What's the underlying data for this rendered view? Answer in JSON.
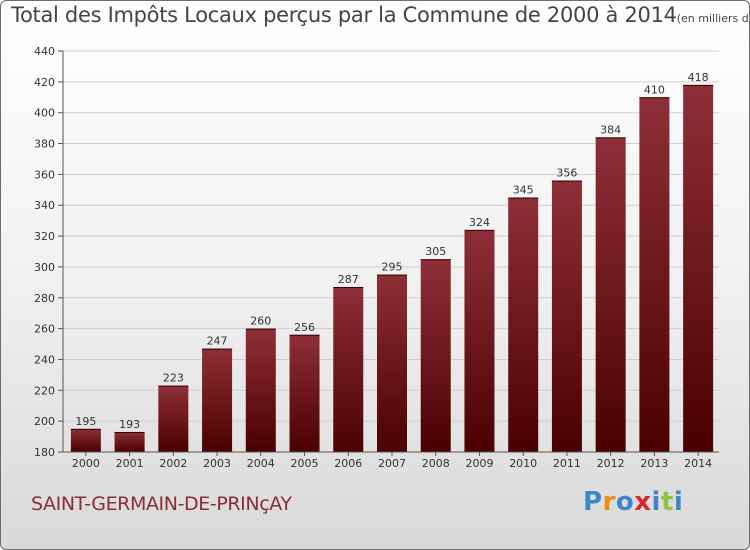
{
  "chart_data": {
    "type": "bar",
    "title": "Total des Impôts Locaux perçus par la Commune de 2000 à 2014",
    "title_unit": "(en milliers d'€)",
    "categories": [
      "2000",
      "2001",
      "2002",
      "2003",
      "2004",
      "2005",
      "2006",
      "2007",
      "2008",
      "2009",
      "2010",
      "2011",
      "2012",
      "2013",
      "2014"
    ],
    "values": [
      195,
      193,
      223,
      247,
      260,
      256,
      287,
      295,
      305,
      324,
      345,
      356,
      384,
      410,
      418
    ],
    "data_labels": [
      "195",
      "193",
      "223",
      "247",
      "260",
      "256",
      "287",
      "295",
      "305",
      "324",
      "345",
      "356",
      "384",
      "410",
      "418"
    ],
    "yticks": [
      "180",
      "200",
      "220",
      "240",
      "260",
      "280",
      "300",
      "320",
      "340",
      "360",
      "380",
      "400",
      "420",
      "440"
    ],
    "ylim": [
      180,
      440
    ],
    "xlabel": "",
    "ylabel": "",
    "grid": "horizontal",
    "bar_color": "#7a1f27",
    "bar_color_light": "#8e2f38",
    "bar_color_dark": "#4a0000"
  },
  "commune": "SAINT-GERMAIN-DE-PRINçAY",
  "logo": {
    "text": "Proxiti",
    "letters": [
      "P",
      "r",
      "o",
      "x",
      "i",
      "t",
      "i"
    ],
    "colors": [
      "#3e86c8",
      "#f08c1e",
      "#3e86c8",
      "#d7262a",
      "#3e86c8",
      "#8cc63f",
      "#3e86c8"
    ]
  }
}
